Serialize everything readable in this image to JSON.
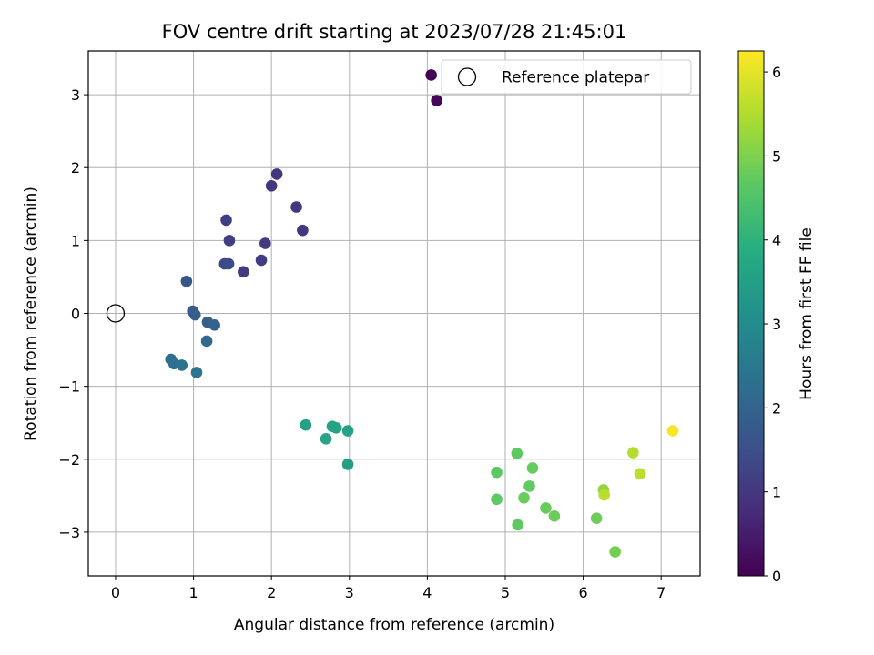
{
  "chart_data": {
    "type": "scatter",
    "title": "FOV centre drift starting at 2023/07/28 21:45:01",
    "xlabel": "Angular distance from reference (arcmin)",
    "ylabel": "Rotation from reference (arcmin)",
    "xlim": [
      -0.35,
      7.5
    ],
    "ylim": [
      -3.6,
      3.6
    ],
    "xticks": [
      0,
      1,
      2,
      3,
      4,
      5,
      6,
      7
    ],
    "yticks": [
      -3,
      -2,
      -1,
      0,
      1,
      2,
      3
    ],
    "grid": true,
    "legend": {
      "placement": "top-right",
      "entries": [
        "Reference platepar"
      ]
    },
    "reference_point": {
      "x": 0,
      "y": 0
    },
    "colorbar": {
      "label": "Hours from first FF file",
      "range": [
        0,
        6.25
      ],
      "ticks": [
        0,
        1,
        2,
        3,
        4,
        5,
        6
      ],
      "colormap": "viridis"
    },
    "points": [
      {
        "x": 4.05,
        "y": 3.27,
        "hours": 0.02
      },
      {
        "x": 4.12,
        "y": 2.92,
        "hours": 0.1
      },
      {
        "x": 2.07,
        "y": 1.91,
        "hours": 0.95
      },
      {
        "x": 2.0,
        "y": 1.75,
        "hours": 0.97
      },
      {
        "x": 2.32,
        "y": 1.46,
        "hours": 1.0
      },
      {
        "x": 2.4,
        "y": 1.14,
        "hours": 1.02
      },
      {
        "x": 1.42,
        "y": 1.28,
        "hours": 1.12
      },
      {
        "x": 1.46,
        "y": 1.0,
        "hours": 1.15
      },
      {
        "x": 1.92,
        "y": 0.96,
        "hours": 1.05
      },
      {
        "x": 1.87,
        "y": 0.73,
        "hours": 1.1
      },
      {
        "x": 1.64,
        "y": 0.57,
        "hours": 1.08
      },
      {
        "x": 1.4,
        "y": 0.68,
        "hours": 1.35
      },
      {
        "x": 1.45,
        "y": 0.68,
        "hours": 1.4
      },
      {
        "x": 0.91,
        "y": 0.44,
        "hours": 1.65
      },
      {
        "x": 0.99,
        "y": 0.03,
        "hours": 1.8
      },
      {
        "x": 1.02,
        "y": -0.02,
        "hours": 1.85
      },
      {
        "x": 1.18,
        "y": -0.12,
        "hours": 1.9
      },
      {
        "x": 1.27,
        "y": -0.16,
        "hours": 1.95
      },
      {
        "x": 1.17,
        "y": -0.38,
        "hours": 2.1
      },
      {
        "x": 0.71,
        "y": -0.63,
        "hours": 2.2
      },
      {
        "x": 0.75,
        "y": -0.69,
        "hours": 2.3
      },
      {
        "x": 0.85,
        "y": -0.71,
        "hours": 2.35
      },
      {
        "x": 1.04,
        "y": -0.81,
        "hours": 2.45
      },
      {
        "x": 2.44,
        "y": -1.53,
        "hours": 3.55
      },
      {
        "x": 2.78,
        "y": -1.55,
        "hours": 3.6
      },
      {
        "x": 2.83,
        "y": -1.57,
        "hours": 3.62
      },
      {
        "x": 2.98,
        "y": -1.61,
        "hours": 3.58
      },
      {
        "x": 2.7,
        "y": -1.72,
        "hours": 3.65
      },
      {
        "x": 2.98,
        "y": -2.07,
        "hours": 3.5
      },
      {
        "x": 5.15,
        "y": -1.92,
        "hours": 4.7
      },
      {
        "x": 5.35,
        "y": -2.12,
        "hours": 4.75
      },
      {
        "x": 4.89,
        "y": -2.18,
        "hours": 4.65
      },
      {
        "x": 5.31,
        "y": -2.37,
        "hours": 4.72
      },
      {
        "x": 4.89,
        "y": -2.55,
        "hours": 4.68
      },
      {
        "x": 5.24,
        "y": -2.53,
        "hours": 4.8
      },
      {
        "x": 5.52,
        "y": -2.67,
        "hours": 4.78
      },
      {
        "x": 5.63,
        "y": -2.78,
        "hours": 4.82
      },
      {
        "x": 5.16,
        "y": -2.9,
        "hours": 4.7
      },
      {
        "x": 6.17,
        "y": -2.81,
        "hours": 4.85
      },
      {
        "x": 6.41,
        "y": -3.27,
        "hours": 4.9
      },
      {
        "x": 6.26,
        "y": -2.42,
        "hours": 5.2
      },
      {
        "x": 6.27,
        "y": -2.49,
        "hours": 5.6
      },
      {
        "x": 6.64,
        "y": -1.91,
        "hours": 5.55
      },
      {
        "x": 6.73,
        "y": -2.2,
        "hours": 5.6
      },
      {
        "x": 7.15,
        "y": -1.61,
        "hours": 6.2
      }
    ]
  }
}
